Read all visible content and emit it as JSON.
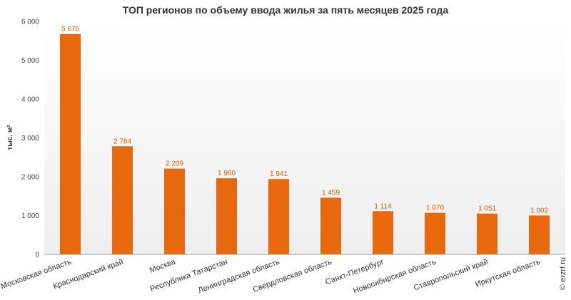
{
  "chart_data": {
    "type": "bar",
    "title": "ТОП регионов по объему ввода жилья за пять месяцев 2025 года",
    "ylabel": "тыс. м²",
    "xlabel": "",
    "ylim": [
      0,
      6000
    ],
    "yticks": [
      0,
      1000,
      2000,
      3000,
      4000,
      5000,
      6000
    ],
    "ytick_labels": [
      "0",
      "1 000",
      "2 000",
      "3 000",
      "4 000",
      "5 000",
      "6 000"
    ],
    "categories": [
      "Московская область",
      "Краснодарский край",
      "Москва",
      "Республика Татарстан",
      "Ленинградская область",
      "Свердловская область",
      "Санкт-Петербург",
      "Новосибирская область",
      "Ставропольский край",
      "Иркутская область"
    ],
    "values": [
      5675,
      2784,
      2209,
      1960,
      1941,
      1459,
      1114,
      1070,
      1051,
      1002
    ],
    "value_labels": [
      "5 675",
      "2 784",
      "2 209",
      "1 960",
      "1 941",
      "1 459",
      "1 114",
      "1 070",
      "1 051",
      "1 002"
    ],
    "bar_color": "#e8690b",
    "grid": false,
    "legend": "none"
  },
  "copyright": "© erzrf.ru"
}
